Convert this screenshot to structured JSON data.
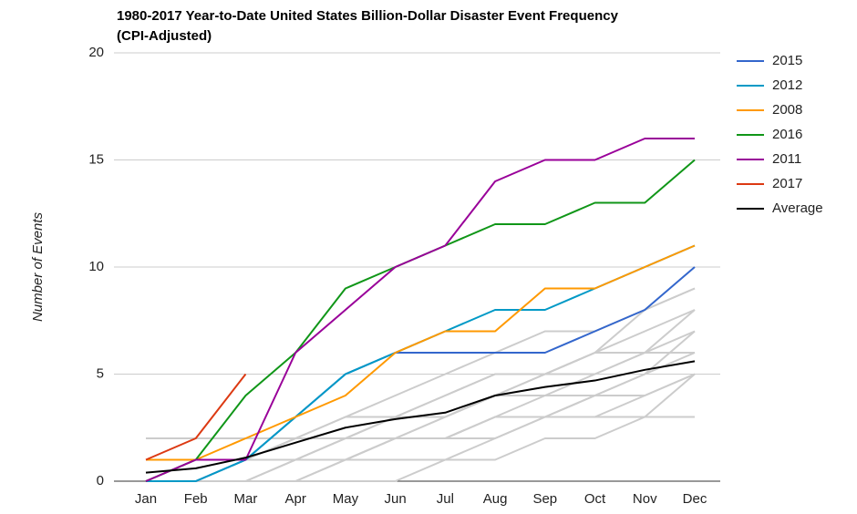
{
  "chart_data": {
    "type": "line",
    "title": "1980-2017 Year-to-Date United States Billion-Dollar Disaster Event Frequency",
    "subtitle": "(CPI-Adjusted)",
    "y_label": "Number of Events",
    "categories": [
      "Jan",
      "Feb",
      "Mar",
      "Apr",
      "May",
      "Jun",
      "Jul",
      "Aug",
      "Sep",
      "Oct",
      "Nov",
      "Dec"
    ],
    "ylim": [
      0,
      20
    ],
    "yticks": [
      0,
      5,
      10,
      15,
      20
    ],
    "grid": true,
    "legend": "right",
    "other_years_color": "#cccccc",
    "other_years": [
      {
        "values": [
          0,
          0,
          0,
          1,
          2,
          3,
          3,
          4,
          5,
          6,
          8,
          9
        ]
      },
      {
        "values": [
          0,
          1,
          1,
          2,
          3,
          4,
          5,
          6,
          7,
          7,
          8,
          9
        ]
      },
      {
        "values": [
          0,
          0,
          1,
          1,
          2,
          2,
          3,
          4,
          5,
          6,
          7,
          8
        ]
      },
      {
        "values": [
          0,
          0,
          0,
          0,
          1,
          1,
          1,
          2,
          3,
          4,
          5,
          6
        ]
      },
      {
        "values": [
          0,
          1,
          1,
          1,
          1,
          2,
          2,
          3,
          3,
          4,
          4,
          5
        ]
      },
      {
        "values": [
          0,
          0,
          0,
          1,
          1,
          2,
          2,
          3,
          4,
          4,
          5,
          7
        ]
      },
      {
        "values": [
          0,
          0,
          0,
          0,
          0,
          0,
          1,
          1,
          2,
          2,
          3,
          5
        ]
      },
      {
        "values": [
          1,
          1,
          1,
          2,
          3,
          3,
          4,
          5,
          5,
          6,
          6,
          7
        ]
      },
      {
        "values": [
          0,
          0,
          1,
          2,
          2,
          3,
          4,
          5,
          5,
          5,
          6,
          6
        ]
      },
      {
        "values": [
          1,
          1,
          1,
          1,
          2,
          2,
          2,
          2,
          3,
          3,
          4,
          5
        ]
      },
      {
        "values": [
          0,
          0,
          0,
          0,
          1,
          2,
          3,
          4,
          4,
          5,
          6,
          8
        ]
      },
      {
        "values": [
          2,
          2,
          2,
          2,
          2,
          2,
          2,
          3,
          3,
          3,
          3,
          3
        ]
      }
    ],
    "series": [
      {
        "name": "2015",
        "color": "#3366cc",
        "values": [
          0,
          0,
          1,
          3,
          5,
          6,
          6,
          6,
          6,
          7,
          8,
          10
        ]
      },
      {
        "name": "2012",
        "color": "#0099c6",
        "values": [
          0,
          0,
          1,
          3,
          5,
          6,
          7,
          8,
          8,
          9,
          10,
          11
        ]
      },
      {
        "name": "2008",
        "color": "#ff9900",
        "values": [
          1,
          1,
          2,
          3,
          4,
          6,
          7,
          7,
          9,
          9,
          10,
          11
        ]
      },
      {
        "name": "2016",
        "color": "#109618",
        "values": [
          0,
          1,
          4,
          6,
          9,
          10,
          11,
          12,
          12,
          13,
          13,
          15
        ]
      },
      {
        "name": "2011",
        "color": "#990099",
        "values": [
          0,
          1,
          1,
          6,
          8,
          10,
          11,
          14,
          15,
          15,
          16,
          16
        ]
      },
      {
        "name": "2017",
        "color": "#dc3912",
        "values": [
          1,
          2,
          5,
          null,
          null,
          null,
          null,
          null,
          null,
          null,
          null,
          null
        ]
      },
      {
        "name": "Average",
        "color": "#000000",
        "values": [
          0.4,
          0.6,
          1.1,
          1.8,
          2.5,
          2.9,
          3.2,
          4.0,
          4.4,
          4.7,
          5.2,
          5.6
        ]
      }
    ]
  }
}
